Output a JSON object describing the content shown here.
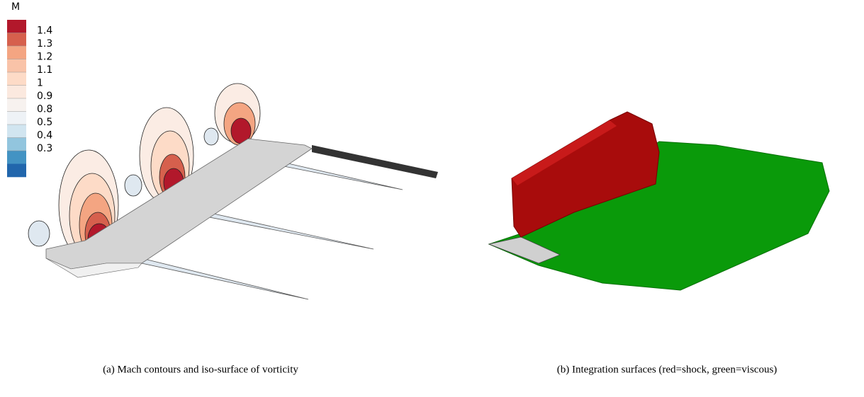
{
  "legend": {
    "title": "M",
    "labels": [
      "1.4",
      "1.3",
      "1.2",
      "1.1",
      "1",
      "0.9",
      "0.8",
      "0.5",
      "0.4",
      "0.3"
    ],
    "colors": [
      "#b2182b",
      "#d6604d",
      "#f4a582",
      "#f9c3a8",
      "#fddbc7",
      "#fbe9df",
      "#f7f2ef",
      "#eef2f6",
      "#d1e5f0",
      "#92c5de",
      "#4393c3",
      "#2166ac"
    ]
  },
  "captions": {
    "a": "(a) Mach contours and iso-surface of vorticity",
    "b": "(b) Integration surfaces (red=shock, green=viscous)"
  }
}
